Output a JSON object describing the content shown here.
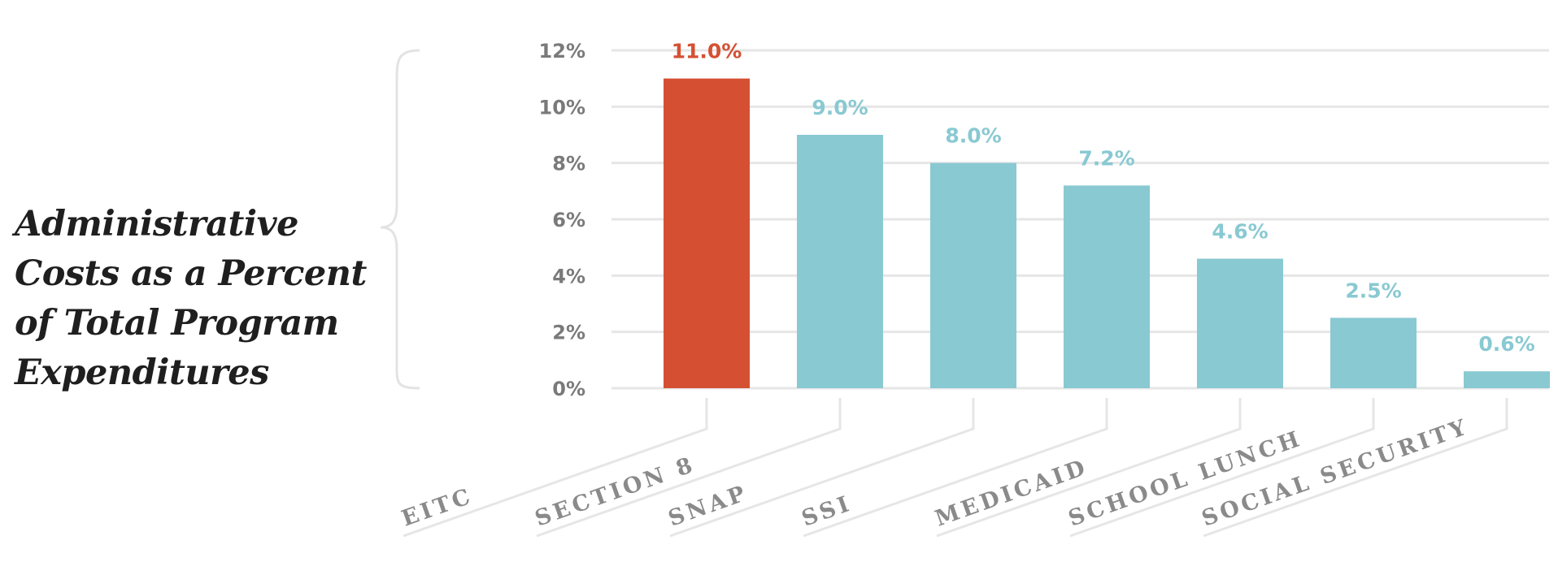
{
  "chart_data": {
    "type": "bar",
    "title_lines": [
      "Administrative",
      "Costs as a Percent",
      "of Total Program",
      "Expenditures"
    ],
    "categories": [
      "EITC",
      "SECTION 8",
      "SNAP",
      "SSI",
      "MEDICAID",
      "SCHOOL LUNCH",
      "SOCIAL SECURITY"
    ],
    "values": [
      11.0,
      9.0,
      8.0,
      7.2,
      4.6,
      2.5,
      0.6
    ],
    "value_labels": [
      "11.0%",
      "9.0%",
      "8.0%",
      "7.2%",
      "4.6%",
      "2.5%",
      "0.6%"
    ],
    "ylim": [
      0,
      12
    ],
    "yticks": [
      0,
      2,
      4,
      6,
      8,
      10,
      12
    ],
    "ytick_labels": [
      "0%",
      "2%",
      "4%",
      "6%",
      "8%",
      "10%",
      "12%"
    ],
    "grid": true,
    "colors": {
      "highlight": "#d55033",
      "bar": "#89c9d2",
      "highlight_label": "#d55033",
      "bar_label": "#89c9d2",
      "grid": "#e6e6e6",
      "bracket": "#e3e3e3"
    },
    "highlight_index": 0
  }
}
